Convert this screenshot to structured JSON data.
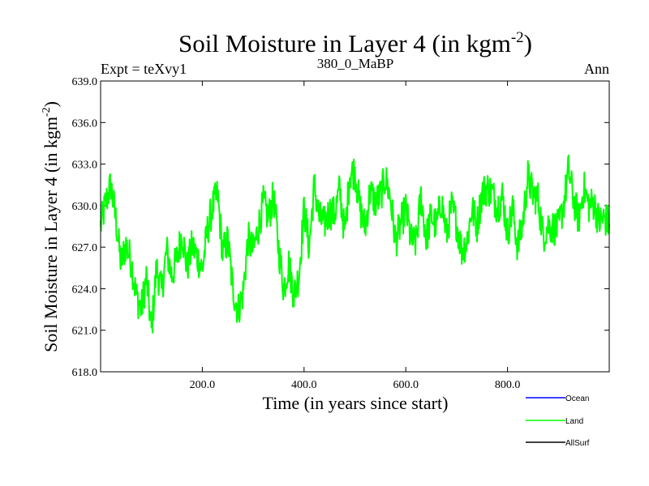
{
  "chart_data": {
    "type": "line",
    "title_main": "Soil Moisture in Layer 4 (in kgm",
    "title_sup": "-2",
    "title_close": ")",
    "subtitle_left": "Expt = teXvy1",
    "subtitle_center": "380_0_MaBP",
    "subtitle_right": "Ann",
    "xlabel": "Time (in years since start)",
    "ylabel_main": "Soil Moisture in Layer 4 (in kgm",
    "ylabel_sup": "-2",
    "ylabel_close": ")",
    "xlim": [
      0,
      1000
    ],
    "ylim": [
      618,
      639
    ],
    "xticks": [
      200,
      400,
      600,
      800
    ],
    "xtick_labels": [
      "200.0",
      "400.0",
      "600.0",
      "800.0"
    ],
    "yticks": [
      618,
      621,
      624,
      627,
      630,
      633,
      636,
      639
    ],
    "ytick_labels": [
      "618.0",
      "621.0",
      "624.0",
      "627.0",
      "630.0",
      "633.0",
      "636.0",
      "639.0"
    ],
    "legend": [
      {
        "name": "Ocean",
        "color": "#0000ff"
      },
      {
        "name": "Land",
        "color": "#00ff00"
      },
      {
        "name": "AllSurf",
        "color": "#000000"
      }
    ],
    "series": [
      {
        "name": "Land",
        "color": "#00ff00",
        "x": [
          0,
          10,
          20,
          30,
          40,
          50,
          60,
          70,
          80,
          90,
          100,
          110,
          120,
          130,
          140,
          150,
          160,
          170,
          180,
          190,
          200,
          210,
          220,
          230,
          240,
          250,
          260,
          270,
          280,
          290,
          300,
          310,
          320,
          330,
          340,
          350,
          360,
          370,
          380,
          390,
          400,
          410,
          420,
          430,
          440,
          450,
          460,
          470,
          480,
          490,
          500,
          510,
          520,
          530,
          540,
          550,
          560,
          570,
          580,
          590,
          600,
          610,
          620,
          630,
          640,
          650,
          660,
          670,
          680,
          690,
          700,
          710,
          720,
          730,
          740,
          750,
          760,
          770,
          780,
          790,
          800,
          810,
          820,
          830,
          840,
          850,
          860,
          870,
          880,
          890,
          900,
          910,
          920,
          930,
          940,
          950,
          960,
          970,
          980,
          990,
          1000
        ],
        "values": [
          628.5,
          630.2,
          631.5,
          629.0,
          625.8,
          627.2,
          626.0,
          623.5,
          622.5,
          624.8,
          621.0,
          625.5,
          623.8,
          626.8,
          624.9,
          626.2,
          628.0,
          625.5,
          627.1,
          626.3,
          625.4,
          628.2,
          629.9,
          630.8,
          626.6,
          627.5,
          624.0,
          622.4,
          623.7,
          627.6,
          626.7,
          628.4,
          630.2,
          629.1,
          630.7,
          626.9,
          624.0,
          625.8,
          623.5,
          625.0,
          629.8,
          627.0,
          631.5,
          629.1,
          628.7,
          629.6,
          629.4,
          631.2,
          627.9,
          632.3,
          632.5,
          629.8,
          628.4,
          631.1,
          630.2,
          630.7,
          632.0,
          630.5,
          627.4,
          628.7,
          629.8,
          627.5,
          627.3,
          630.7,
          627.6,
          629.3,
          628.5,
          630.4,
          627.9,
          629.9,
          628.7,
          626.8,
          627.4,
          629.8,
          628.6,
          630.9,
          631.3,
          630.9,
          629.9,
          630.7,
          628.0,
          629.8,
          627.0,
          628.8,
          632.1,
          630.8,
          630.5,
          627.8,
          628.6,
          628.4,
          628.4,
          630.0,
          632.6,
          630.4,
          629.0,
          631.3,
          630.0,
          630.2,
          628.8,
          629.1,
          628.7
        ]
      }
    ]
  }
}
